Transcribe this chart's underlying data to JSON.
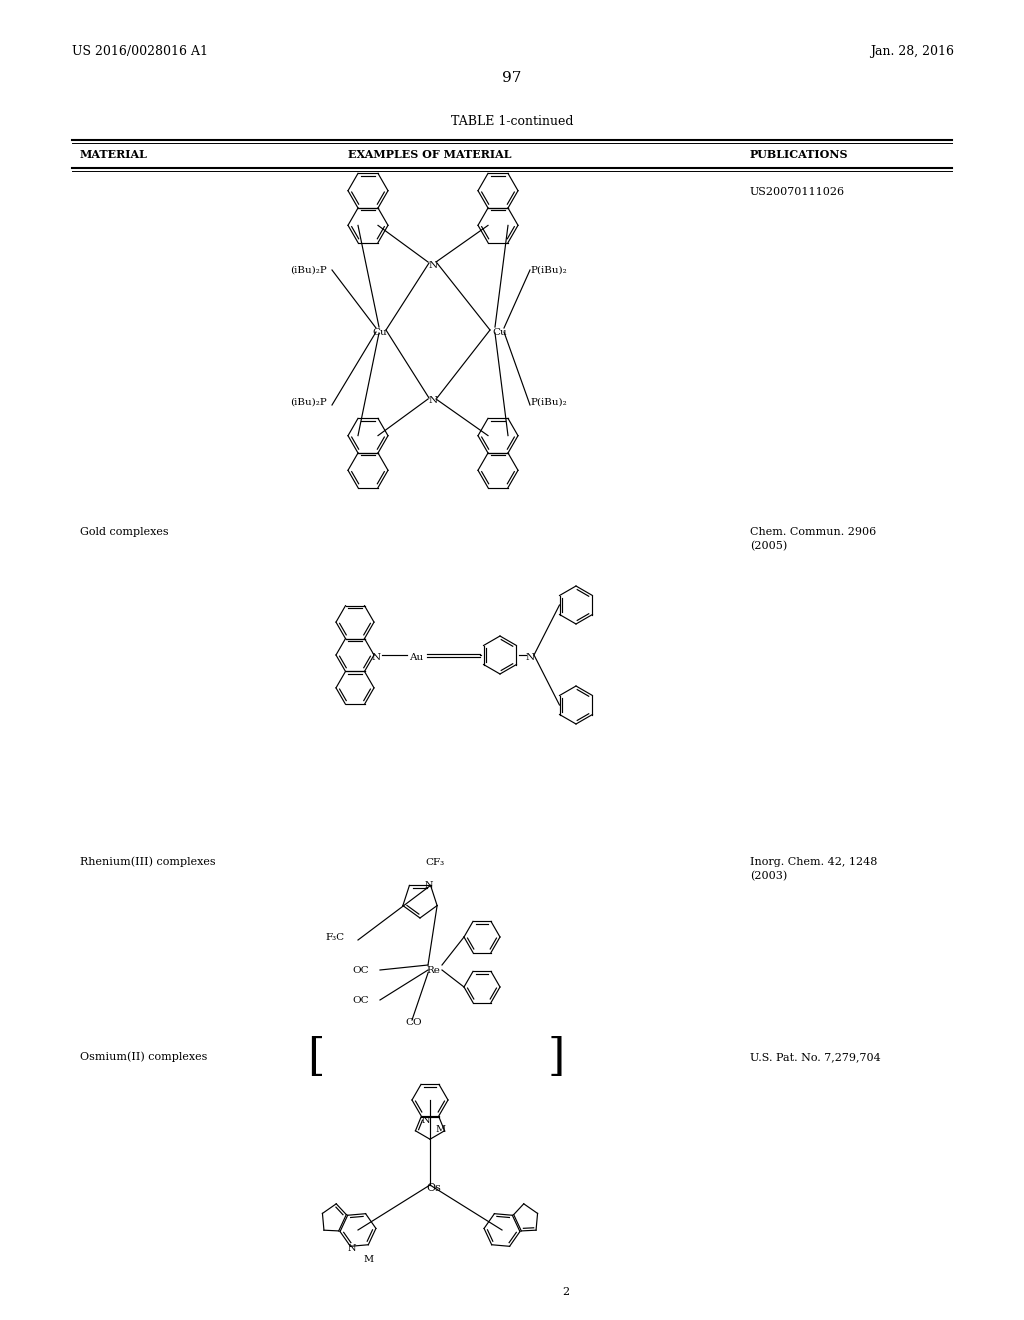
{
  "page_number": "97",
  "patent_left": "US 2016/0028016 A1",
  "patent_right": "Jan. 28, 2016",
  "table_title": "TABLE 1-continued",
  "col1": "MATERIAL",
  "col2": "EXAMPLES OF MATERIAL",
  "col3": "PUBLICATIONS",
  "row1_material": "",
  "row1_pub": "US20070111026",
  "row2_material": "Gold complexes",
  "row2_pub_line1": "Chem. Commun. 2906",
  "row2_pub_line2": "(2005)",
  "row3_material": "Rhenium(III) complexes",
  "row3_pub_line1": "Inorg. Chem. 42, 1248",
  "row3_pub_line2": "(2003)",
  "row4_material": "Osmium(II) complexes",
  "row4_pub": "U.S. Pat. No. 7,279,704",
  "bg_color": "#ffffff",
  "text_color": "#000000"
}
